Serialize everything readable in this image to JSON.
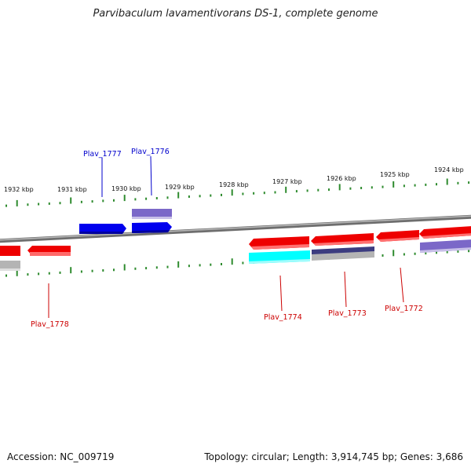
{
  "header": {
    "title": "Parvibaculum lavamentivorans DS-1, complete genome"
  },
  "footer": {
    "accession": "Accession: NC_009719",
    "topology": "Topology: circular",
    "length": "Length: 3,914,745 bp",
    "genes": "Genes: 3,686"
  },
  "colors": {
    "backbone": "#8c8c8c",
    "tick": "#2e8b2e",
    "forward_gene": "#0000ee",
    "reverse_gene": "#ee0000",
    "label_forward": "#0000cc",
    "label_reverse": "#cc0000",
    "cds_lavender": "#7b68c8",
    "cds_navy": "#3c3c80",
    "cds_cyan": "#00ffff",
    "cds_gray": "#b4b4b4"
  },
  "map": {
    "scale_labels": [
      "1932 kbp",
      "1931 kbp",
      "1930 kbp",
      "1929 kbp",
      "1928 kbp",
      "1927 kbp",
      "1926 kbp",
      "1925 kbp",
      "1924 kbp"
    ],
    "genes": [
      {
        "id": "Plav_1777",
        "strand": "forward",
        "label": "Plav_1777"
      },
      {
        "id": "Plav_1776",
        "strand": "forward",
        "label": "Plav_1776"
      },
      {
        "id": "Plav_1778",
        "strand": "reverse",
        "label": "Plav_1778"
      },
      {
        "id": "Plav_1774",
        "strand": "reverse",
        "label": "Plav_1774"
      },
      {
        "id": "Plav_1773",
        "strand": "reverse",
        "label": "Plav_1773"
      },
      {
        "id": "Plav_1772",
        "strand": "reverse",
        "label": "Plav_1772"
      }
    ]
  }
}
